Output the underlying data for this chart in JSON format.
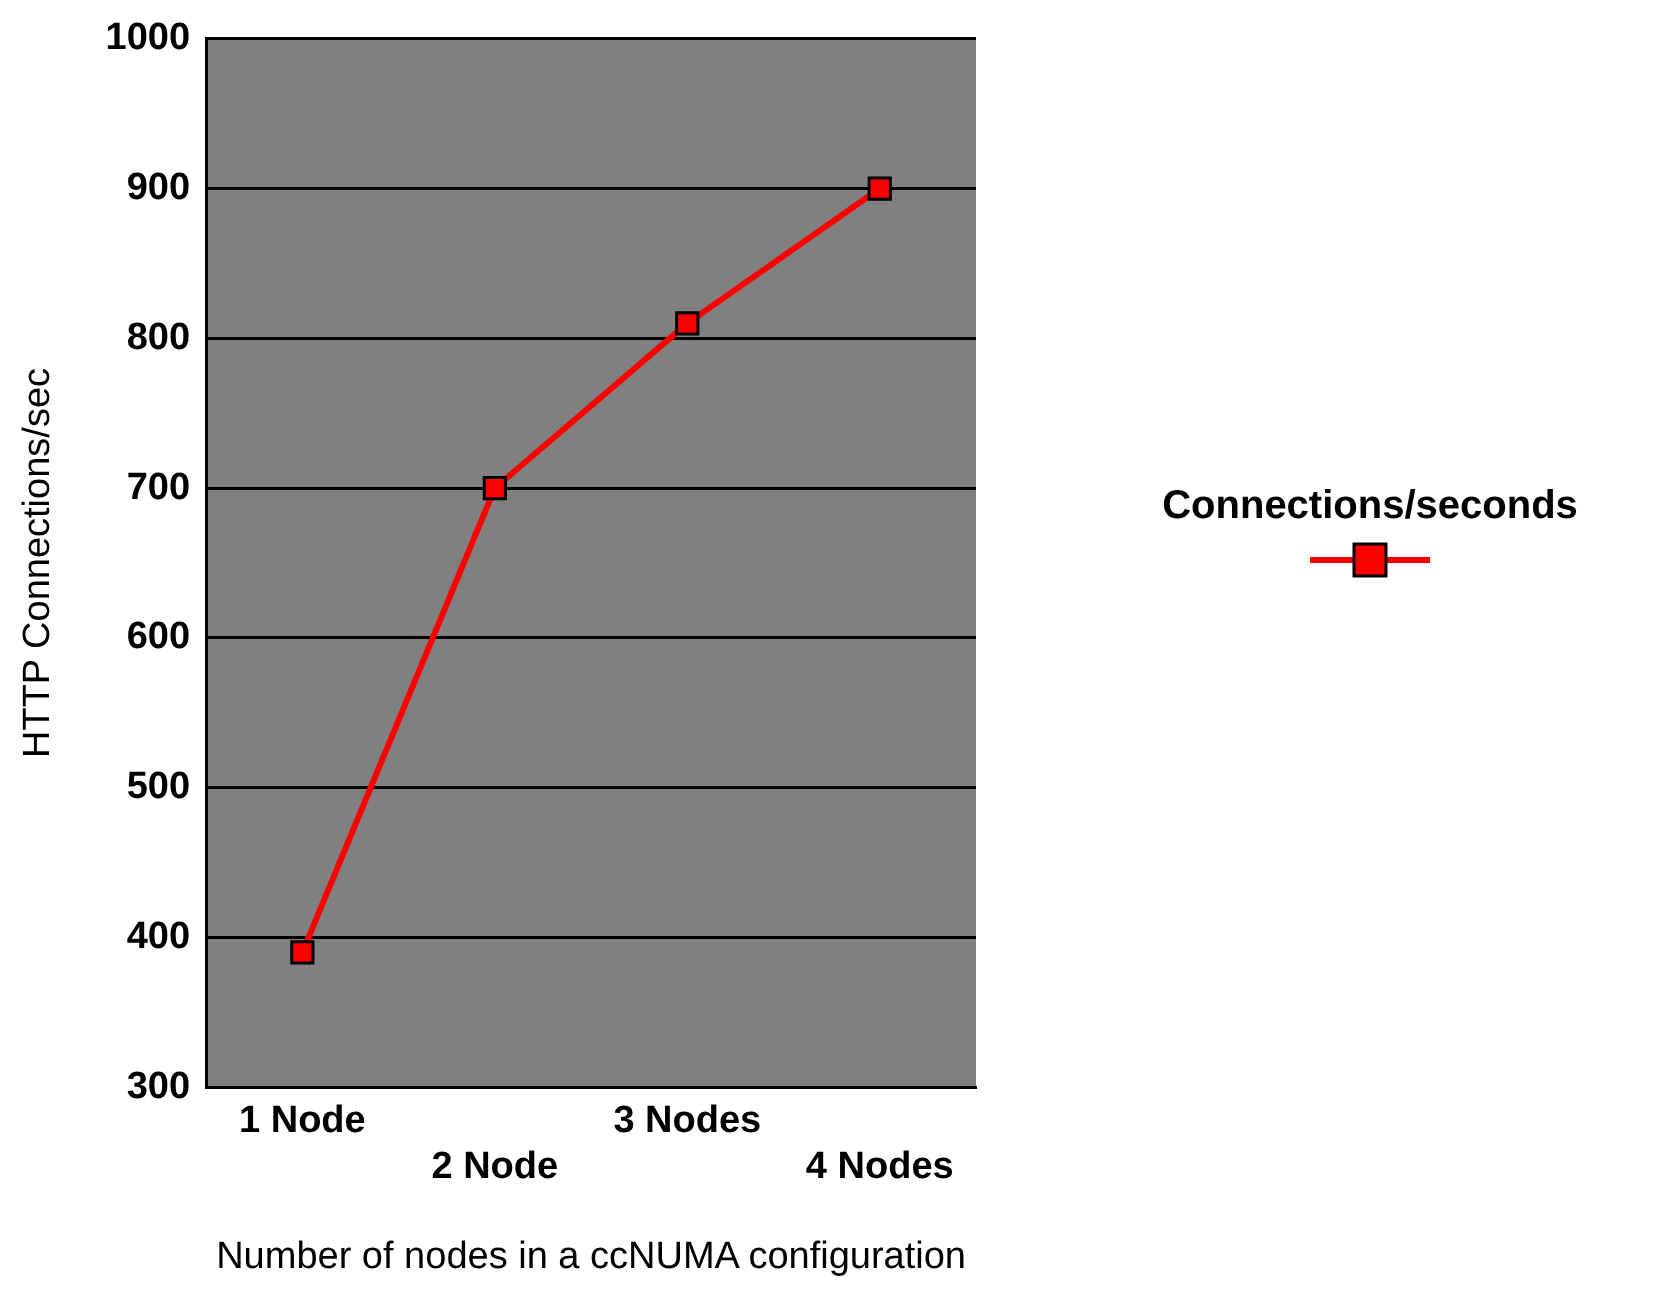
{
  "chart_data": {
    "type": "line",
    "xlabel": "Number of nodes in a ccNUMA configuration",
    "ylabel": "HTTP Connections/sec",
    "categories": [
      "1 Node",
      "2 Node",
      "3 Nodes",
      "4 Nodes"
    ],
    "series": [
      {
        "name": "Connections/seconds",
        "color": "#ff0000",
        "values": [
          390,
          700,
          810,
          900
        ]
      }
    ],
    "ylim": [
      300,
      1000
    ],
    "yticks": [
      300,
      400,
      500,
      600,
      700,
      800,
      900,
      1000
    ],
    "grid": "y",
    "legend": "right",
    "marker": "square",
    "line_style": "solid"
  }
}
